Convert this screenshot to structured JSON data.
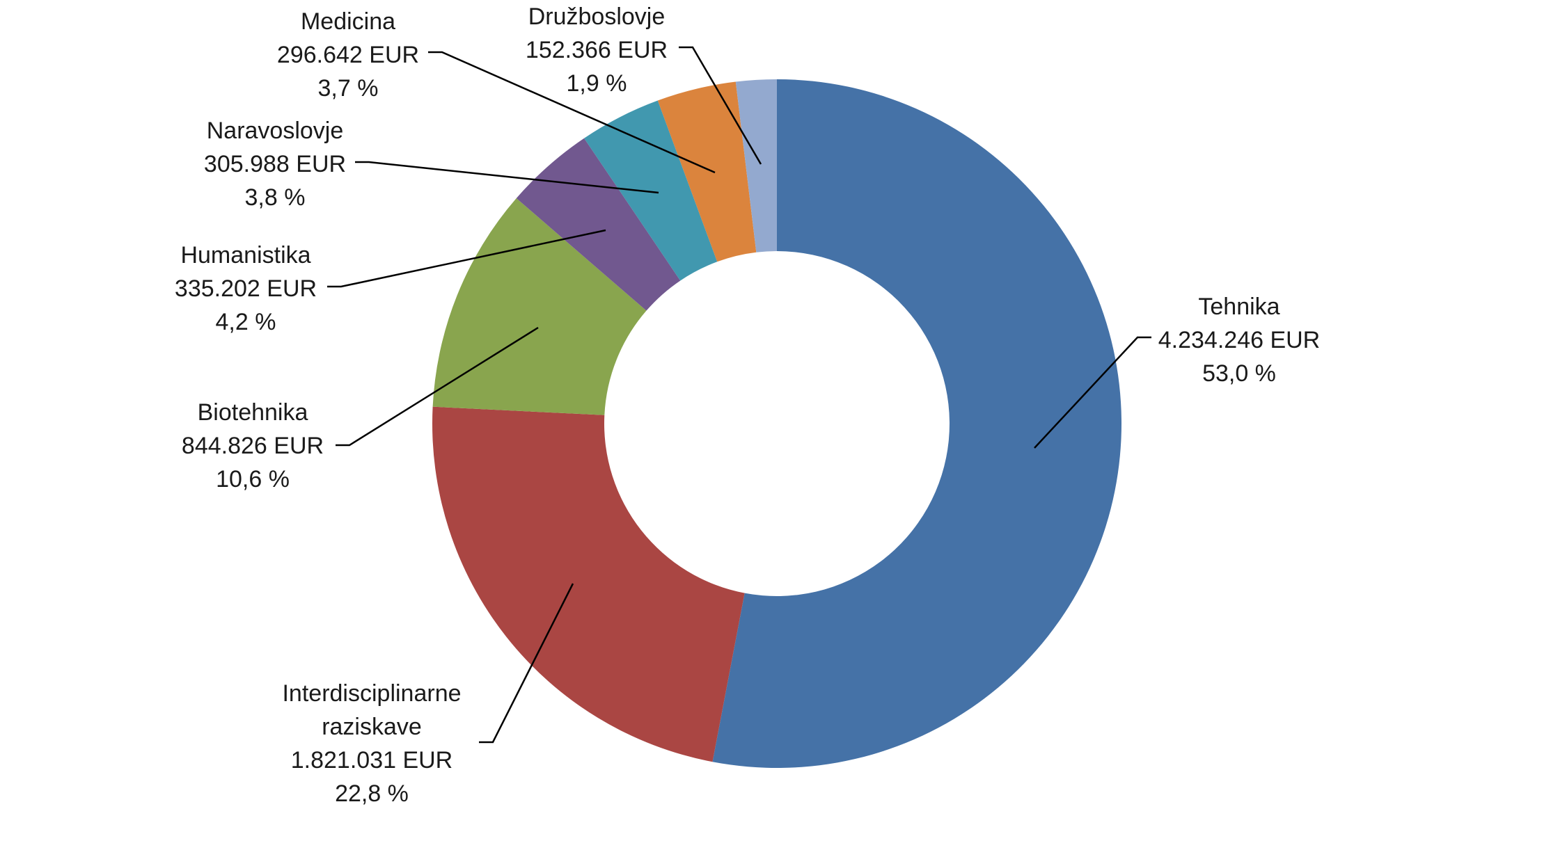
{
  "chart_data": {
    "type": "pie",
    "variant": "donut",
    "unit": "EUR",
    "slices": [
      {
        "name": "Tehnika",
        "lines": [
          "Tehnika"
        ],
        "value_text": "4.234.246 EUR",
        "percent_text": "53,0 %",
        "value": 4234246,
        "percent": 53.0,
        "color": "#4572A7"
      },
      {
        "name": "Interdisciplinarne raziskave",
        "lines": [
          "Interdisciplinarne",
          "raziskave"
        ],
        "value_text": "1.821.031 EUR",
        "percent_text": "22,8 %",
        "value": 1821031,
        "percent": 22.8,
        "color": "#AA4643"
      },
      {
        "name": "Biotehnika",
        "lines": [
          "Biotehnika"
        ],
        "value_text": "844.826 EUR",
        "percent_text": "10,6 %",
        "value": 844826,
        "percent": 10.6,
        "color": "#89A54E"
      },
      {
        "name": "Humanistika",
        "lines": [
          "Humanistika"
        ],
        "value_text": "335.202 EUR",
        "percent_text": "4,2 %",
        "value": 335202,
        "percent": 4.2,
        "color": "#71588F"
      },
      {
        "name": "Naravoslovje",
        "lines": [
          "Naravoslovje"
        ],
        "value_text": "305.988 EUR",
        "percent_text": "3,8 %",
        "value": 305988,
        "percent": 3.8,
        "color": "#4198AF"
      },
      {
        "name": "Medicina",
        "lines": [
          "Medicina"
        ],
        "value_text": "296.642 EUR",
        "percent_text": "3,7 %",
        "value": 296642,
        "percent": 3.7,
        "color": "#DB843D"
      },
      {
        "name": "Družboslovje",
        "lines": [
          "Družboslovje"
        ],
        "value_text": "152.366 EUR",
        "percent_text": "1,9 %",
        "value": 152366,
        "percent": 1.9,
        "color": "#93A9CF"
      }
    ]
  }
}
